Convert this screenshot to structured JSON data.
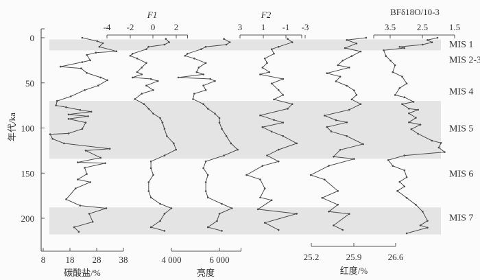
{
  "chart_data": {
    "type": "line",
    "y_axis": {
      "label": "年代/ka",
      "range": [
        0,
        215
      ],
      "ticks": [
        0,
        50,
        100,
        150,
        200
      ],
      "inverted": true
    },
    "bands": [
      {
        "label": "MIS 1",
        "from": 2,
        "to": 14,
        "shaded": true,
        "label_age": 7
      },
      {
        "label": "MIS 2-3",
        "shaded": false,
        "label_age": 24
      },
      {
        "label": "MIS 4",
        "shaded": false,
        "label_age": 59
      },
      {
        "label": "MIS 5",
        "from": 70,
        "to": 134,
        "shaded": true,
        "label_age": 100
      },
      {
        "label": "MIS 6",
        "shaded": false,
        "label_age": 150
      },
      {
        "label": "MIS 7",
        "from": 188,
        "to": 218,
        "shaded": true,
        "label_age": 199
      }
    ],
    "colors": {
      "line": "#4a4a4a",
      "band": "#e4e4e4",
      "axis": "#555555"
    },
    "series": [
      {
        "key": "carbonate",
        "axis_label": "碳酸盐/%",
        "axis_position": "bottom",
        "ticks": [
          "8",
          "18",
          "28",
          "38"
        ],
        "range": [
          8,
          38
        ],
        "reversed": false,
        "age": [
          0,
          3.8,
          6,
          10,
          15,
          16.5,
          19,
          25,
          27,
          32,
          34,
          39,
          44,
          47,
          53,
          58,
          65,
          70,
          75,
          77,
          80,
          82,
          85,
          87,
          90,
          94,
          101,
          106,
          107,
          112,
          117,
          123,
          125,
          133,
          138,
          139,
          144,
          151,
          157,
          160,
          167,
          179,
          186,
          189,
          195,
          204,
          210,
          215
        ],
        "value": [
          22.6,
          28.2,
          30.3,
          29.0,
          35.4,
          27.7,
          24.3,
          25.6,
          22.6,
          14.5,
          22.2,
          24.3,
          29.5,
          32.0,
          28.6,
          23.5,
          18.3,
          13.2,
          12.8,
          16.6,
          21.8,
          26.0,
          17.5,
          24.8,
          17.5,
          23.9,
          22.6,
          17.5,
          10.6,
          11.5,
          15.8,
          32.9,
          23.9,
          29.5,
          20.9,
          31.2,
          23.5,
          24.3,
          20.9,
          25.6,
          20.1,
          16.6,
          21.8,
          31.6,
          25.2,
          26.5,
          19.6,
          21.3
        ]
      },
      {
        "key": "F1",
        "axis_label": "F1",
        "axis_position": "top",
        "ticks": [
          "-4",
          "-2",
          "0",
          "2"
        ],
        "range": [
          -4,
          3
        ],
        "reversed": false,
        "age": [
          1.3,
          5,
          7.6,
          10,
          12.7,
          17.7,
          20,
          23,
          28,
          33,
          38,
          40.6,
          44,
          45.6,
          48,
          53,
          58,
          62,
          68,
          73.5,
          78.6,
          84,
          89,
          94,
          101,
          109,
          117,
          124,
          130.5,
          137,
          144.5,
          152,
          160,
          170,
          177,
          184,
          189,
          195,
          203,
          210,
          214
        ],
        "value": [
          1.12,
          1.4,
          1.0,
          -0.39,
          -0.58,
          -1.78,
          -1.98,
          -1.38,
          -0.58,
          -0.98,
          -1.38,
          -0.98,
          -1.78,
          -0.18,
          0.42,
          -0.58,
          0.02,
          -0.98,
          -1.58,
          -0.78,
          -0.38,
          0.02,
          0.62,
          0.82,
          1.0,
          1.2,
          1.8,
          2.0,
          1.0,
          -0.18,
          -0.18,
          0.02,
          -0.38,
          -0.38,
          -0.18,
          0.62,
          1.6,
          1.0,
          0.62,
          -0.18,
          1.0
        ]
      },
      {
        "key": "brightness",
        "axis_label": "亮度",
        "axis_position": "bottom",
        "ticks": [
          "4 000",
          "6 000"
        ],
        "range": [
          4000,
          6900
        ],
        "reversed": false,
        "age": [
          1.3,
          5,
          7.6,
          10,
          12.7,
          17.7,
          20,
          23,
          28,
          33,
          38,
          40.6,
          44,
          45.6,
          48,
          53,
          58,
          62,
          68,
          73.5,
          78.6,
          84,
          89,
          94,
          101,
          109,
          117,
          124,
          130.5,
          137,
          144.5,
          152,
          160,
          170,
          177,
          184,
          189,
          195,
          203,
          210,
          214
        ],
        "value": [
          6190,
          6430,
          6290,
          5430,
          5240,
          4670,
          4570,
          4950,
          5430,
          5140,
          5050,
          5330,
          4290,
          5620,
          5810,
          5330,
          5430,
          4950,
          4900,
          5330,
          5520,
          5810,
          6000,
          6000,
          6100,
          6290,
          6480,
          6760,
          6190,
          5430,
          5330,
          5520,
          5430,
          5430,
          5520,
          6100,
          6520,
          6000,
          5900,
          5520,
          6100
        ]
      },
      {
        "key": "F2",
        "axis_label": "F2",
        "axis_position": "top",
        "ticks": [
          "3",
          "1",
          "-1",
          "-3"
        ],
        "range": [
          3,
          -2.4
        ],
        "reversed": true,
        "age": [
          1.3,
          5,
          10,
          12.7,
          17.7,
          23,
          28,
          33,
          38,
          40.6,
          45.6,
          50.7,
          58,
          63.4,
          68.4,
          73.5,
          78.6,
          86,
          91,
          94,
          99,
          104,
          109,
          117,
          124,
          130.5,
          137,
          142,
          152,
          157,
          167,
          177,
          180,
          190,
          195,
          205,
          213
        ],
        "value": [
          -1.17,
          -1.57,
          -0.37,
          0.23,
          0.03,
          0.83,
          0.63,
          1.03,
          0.43,
          1.23,
          -0.77,
          0.23,
          -0.37,
          -0.77,
          0.03,
          -1.57,
          -1.17,
          1.23,
          0.03,
          -0.77,
          1.03,
          0.23,
          -0.77,
          -1.96,
          -0.37,
          0.63,
          -0.37,
          1.03,
          2.43,
          1.23,
          0.83,
          1.23,
          0.23,
          1.43,
          -1.96,
          0.83,
          -0.37
        ]
      },
      {
        "key": "redness",
        "axis_label": "红度/%",
        "axis_position": "bottom",
        "ticks": [
          "25.2",
          "25.9",
          "26.6"
        ],
        "range": [
          25.2,
          26.6
        ],
        "reversed": false,
        "age": [
          0,
          2.5,
          6.3,
          11.4,
          15.2,
          20.3,
          25.3,
          30.4,
          33,
          39.3,
          43.1,
          48.2,
          53.2,
          58.3,
          63.4,
          68.4,
          73.5,
          79.8,
          86.2,
          91.3,
          93.8,
          98.9,
          103.9,
          109,
          117.9,
          124.2,
          131.8,
          134.3,
          141.9,
          152.1,
          157.2,
          169.8,
          177.4,
          185,
          192.6,
          195.2,
          207.9,
          212.9
        ],
        "value": [
          26.11,
          25.79,
          25.95,
          25.76,
          26.02,
          25.87,
          25.72,
          25.64,
          25.83,
          25.46,
          25.68,
          25.61,
          25.79,
          25.91,
          25.95,
          25.87,
          26.02,
          25.83,
          25.42,
          25.61,
          25.79,
          25.46,
          25.53,
          25.79,
          26.06,
          25.68,
          25.57,
          25.91,
          25.49,
          25.19,
          25.42,
          25.64,
          25.38,
          25.64,
          25.49,
          25.83,
          25.57,
          25.72
        ]
      },
      {
        "key": "bf_d18o",
        "axis_label": "BFδ18O/10-3",
        "axis_position": "top",
        "ticks": [
          "3.5",
          "2.5",
          "1.5"
        ],
        "range": [
          4.0,
          1.5
        ],
        "reversed": true,
        "age": [
          0,
          2.5,
          5.1,
          7.6,
          10.1,
          11.4,
          13.9,
          20.3,
          25.3,
          30.4,
          38,
          43.1,
          50.7,
          55.8,
          63.4,
          65.9,
          71,
          73.5,
          78.6,
          79.8,
          83.7,
          88.7,
          93.8,
          96.3,
          101.4,
          106.5,
          114.1,
          116.6,
          121.7,
          126.7,
          130.5,
          135.6,
          142,
          147,
          154.6,
          159.7,
          164.8,
          169.8,
          177.4,
          185,
          192.6,
          202.8,
          207.9,
          210.4,
          216.7
        ],
        "value": [
          2.03,
          2.34,
          2.2,
          2.49,
          3.2,
          3.05,
          3.69,
          3.62,
          3.48,
          3.34,
          3.41,
          3.12,
          2.98,
          3.2,
          3.34,
          3.05,
          2.77,
          3.12,
          2.91,
          2.63,
          2.91,
          2.7,
          2.91,
          2.56,
          2.84,
          2.63,
          2.2,
          1.92,
          1.99,
          1.81,
          3.05,
          3.55,
          3.41,
          3.05,
          2.98,
          3.2,
          3.05,
          3.27,
          2.98,
          2.7,
          2.49,
          2.34,
          2.56,
          2.34,
          2.98
        ]
      }
    ]
  }
}
